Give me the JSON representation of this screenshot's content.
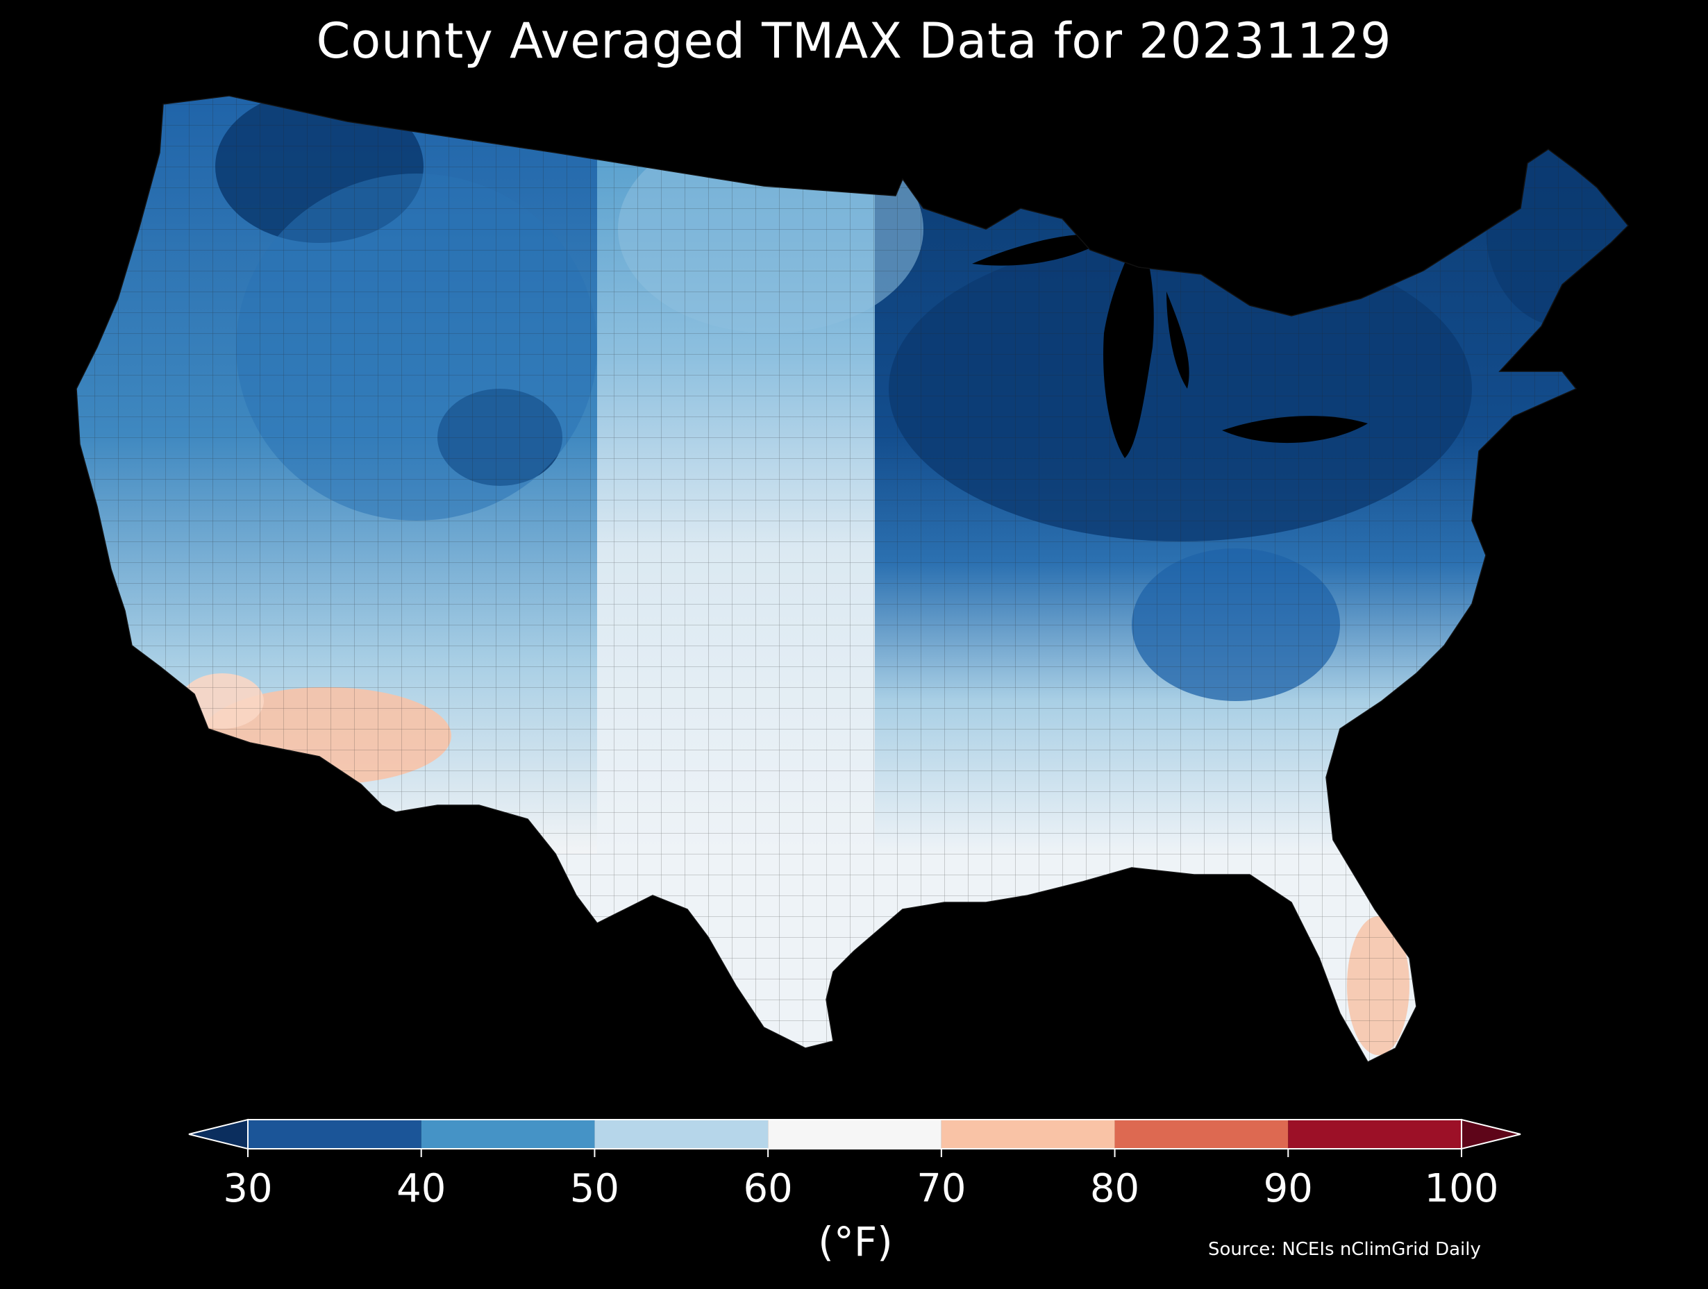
{
  "title": "County Averaged TMAX Data for 20231129",
  "colorbar": {
    "ticks": [
      "30",
      "40",
      "50",
      "60",
      "70",
      "80",
      "90",
      "100"
    ],
    "unit": "(°F)",
    "bins": [
      {
        "from": 30,
        "to": 40,
        "color": "#1b5598"
      },
      {
        "from": 40,
        "to": 50,
        "color": "#4593c6"
      },
      {
        "from": 50,
        "to": 60,
        "color": "#b6d6ea"
      },
      {
        "from": 60,
        "to": 70,
        "color": "#f6f6f6"
      },
      {
        "from": 70,
        "to": 80,
        "color": "#f9c3a6"
      },
      {
        "from": 80,
        "to": 90,
        "color": "#dd6951"
      },
      {
        "from": 90,
        "to": 100,
        "color": "#9c1027"
      }
    ],
    "under_color": "#0b2e5e",
    "over_color": "#5e0519"
  },
  "source": "Source: NCEIs nClimGrid Daily",
  "map_colors": {
    "deep_cold": "#0b3a70",
    "cold": "#1f63a8",
    "cool": "#4a97c9",
    "mild": "#a9cfe5",
    "neutral": "#eef3f7",
    "warm": "#f7c3a8"
  }
}
